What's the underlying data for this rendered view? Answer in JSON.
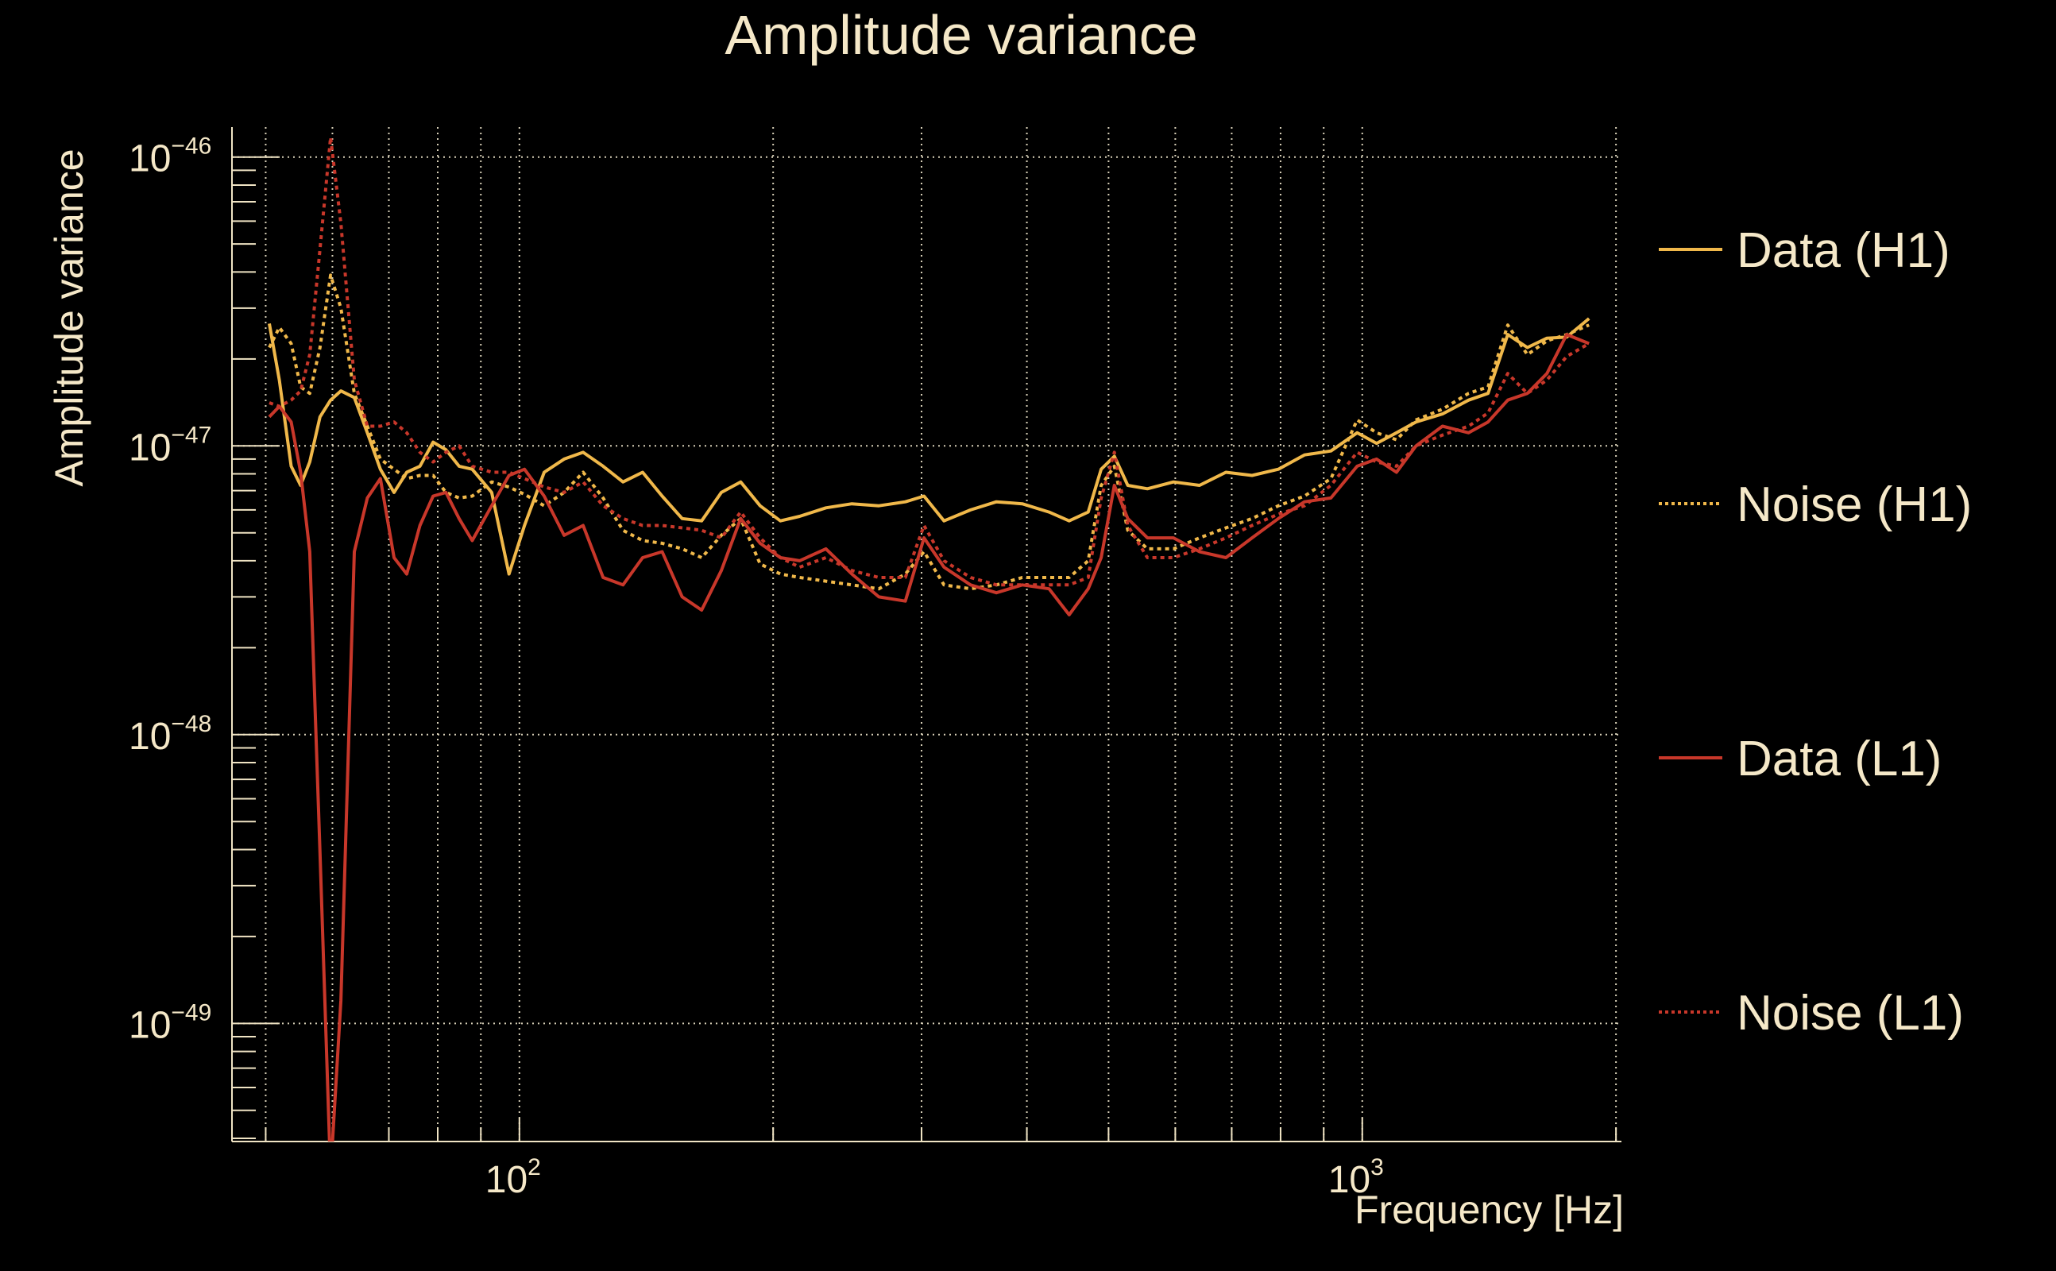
{
  "chart_data": {
    "type": "line",
    "title": "Amplitude variance",
    "xlabel": "Frequency [Hz]",
    "ylabel": "Amplitude variance",
    "xscale": "log",
    "yscale": "log",
    "xlim": [
      45.6,
      2030
    ],
    "ylim": [
      3.9e-50,
      1.27e-46
    ],
    "grid": true,
    "legend_position": "right",
    "x_ticks": [
      {
        "value": 100,
        "base": "10",
        "exp": "2"
      },
      {
        "value": 1000,
        "base": "10",
        "exp": "3"
      }
    ],
    "y_ticks": [
      {
        "value": 1e-46,
        "base": "10",
        "exp": "−46"
      },
      {
        "value": 1e-47,
        "base": "10",
        "exp": "−47"
      },
      {
        "value": 1e-48,
        "base": "10",
        "exp": "−48"
      },
      {
        "value": 1e-49,
        "base": "10",
        "exp": "−49"
      }
    ],
    "x": [
      50.5,
      51.9,
      53.6,
      55,
      56.4,
      58,
      59.7,
      61.4,
      63.7,
      66,
      68.4,
      71,
      73.5,
      76.2,
      79,
      81.8,
      84.8,
      87.9,
      92.7,
      97.2,
      101.4,
      107,
      113,
      119,
      125.7,
      132.7,
      140,
      147.7,
      156,
      164.5,
      173.6,
      183,
      193,
      204,
      215,
      231,
      248,
      267,
      287,
      302,
      319,
      343,
      368,
      395,
      425,
      449,
      473,
      490,
      508,
      527,
      556,
      597,
      641,
      689,
      740,
      795,
      854,
      918,
      986,
      1040,
      1098,
      1158,
      1245,
      1337,
      1410,
      1488,
      1570,
      1656,
      1748,
      1858
    ],
    "series": [
      {
        "name": "Data (H1)",
        "color": "#f0b84a",
        "style": "solid",
        "values": [
          2.65e-47,
          1.69e-47,
          8.5e-48,
          7.3e-48,
          8.8e-48,
          1.26e-47,
          1.44e-47,
          1.55e-47,
          1.47e-47,
          1.11e-47,
          8.3e-48,
          6.9e-48,
          8.1e-48,
          8.5e-48,
          1.03e-47,
          9.7e-48,
          8.5e-48,
          8.3e-48,
          6.9e-48,
          3.6e-48,
          5.3e-48,
          8.1e-48,
          9e-48,
          9.5e-48,
          8.5e-48,
          7.5e-48,
          8.1e-48,
          6.7e-48,
          5.6e-48,
          5.5e-48,
          6.9e-48,
          7.5e-48,
          6.2e-48,
          5.5e-48,
          5.7e-48,
          6.1e-48,
          6.3e-48,
          6.2e-48,
          6.4e-48,
          6.7e-48,
          5.5e-48,
          6e-48,
          6.4e-48,
          6.3e-48,
          5.9e-48,
          5.5e-48,
          5.9e-48,
          8.3e-48,
          9.2e-48,
          7.3e-48,
          7.1e-48,
          7.5e-48,
          7.3e-48,
          8.1e-48,
          7.9e-48,
          8.3e-48,
          9.3e-48,
          9.6e-48,
          1.11e-47,
          1.02e-47,
          1.11e-47,
          1.21e-47,
          1.29e-47,
          1.44e-47,
          1.52e-47,
          2.43e-47,
          2.19e-47,
          2.36e-47,
          2.38e-47,
          2.76e-47
        ]
      },
      {
        "name": "Noise (H1)",
        "color": "#f0b84a",
        "style": "dotted",
        "values": [
          2.19e-47,
          2.57e-47,
          2.26e-47,
          1.6e-47,
          1.52e-47,
          2.19e-47,
          3.9e-47,
          3e-47,
          1.52e-47,
          1.17e-47,
          9e-48,
          8.3e-48,
          7.7e-48,
          7.9e-48,
          7.9e-48,
          6.9e-48,
          6.6e-48,
          6.7e-48,
          7.5e-48,
          7.2e-48,
          6.8e-48,
          6.2e-48,
          6.9e-48,
          8.1e-48,
          6.6e-48,
          5.1e-48,
          4.7e-48,
          4.6e-48,
          4.4e-48,
          4.1e-48,
          4.9e-48,
          5.6e-48,
          3.9e-48,
          3.6e-48,
          3.5e-48,
          3.4e-48,
          3.3e-48,
          3.2e-48,
          3.6e-48,
          4.3e-48,
          3.3e-48,
          3.2e-48,
          3.3e-48,
          3.5e-48,
          3.5e-48,
          3.5e-48,
          4e-48,
          7.3e-48,
          8.5e-48,
          5.1e-48,
          4.4e-48,
          4.4e-48,
          4.8e-48,
          5.2e-48,
          5.6e-48,
          6.2e-48,
          6.7e-48,
          7.7e-48,
          1.23e-47,
          1.11e-47,
          1.05e-47,
          1.23e-47,
          1.34e-47,
          1.52e-47,
          1.6e-47,
          2.62e-47,
          2.07e-47,
          2.31e-47,
          2.43e-47,
          2.62e-47
        ]
      },
      {
        "name": "Data (L1)",
        "color": "#c8372a",
        "style": "solid",
        "values": [
          1.26e-47,
          1.37e-47,
          1.21e-47,
          8.1e-48,
          4.3e-48,
          3.9e-49,
          3e-50,
          1.2e-49,
          4.3e-48,
          6.6e-48,
          7.7e-48,
          4.1e-48,
          3.6e-48,
          5.3e-48,
          6.7e-48,
          6.9e-48,
          5.6e-48,
          4.7e-48,
          6.2e-48,
          7.9e-48,
          8.3e-48,
          6.7e-48,
          4.9e-48,
          5.3e-48,
          3.5e-48,
          3.3e-48,
          4.1e-48,
          4.3e-48,
          3e-48,
          2.7e-48,
          3.7e-48,
          5.6e-48,
          4.6e-48,
          4.1e-48,
          4e-48,
          4.4e-48,
          3.6e-48,
          3e-48,
          2.9e-48,
          4.8e-48,
          3.8e-48,
          3.3e-48,
          3.1e-48,
          3.3e-48,
          3.2e-48,
          2.6e-48,
          3.2e-48,
          4.1e-48,
          7.3e-48,
          5.6e-48,
          4.8e-48,
          4.8e-48,
          4.3e-48,
          4.1e-48,
          4.8e-48,
          5.6e-48,
          6.4e-48,
          6.6e-48,
          8.5e-48,
          9e-48,
          8.1e-48,
          1e-47,
          1.17e-47,
          1.11e-47,
          1.21e-47,
          1.44e-47,
          1.52e-47,
          1.78e-47,
          2.43e-47,
          2.26e-47
        ]
      },
      {
        "name": "Noise (L1)",
        "color": "#c8372a",
        "style": "dotted",
        "values": [
          1.41e-47,
          1.37e-47,
          1.44e-47,
          1.55e-47,
          2.07e-47,
          4.8e-47,
          1.17e-46,
          5.9e-47,
          1.69e-47,
          1.17e-47,
          1.17e-47,
          1.21e-47,
          1.11e-47,
          9.5e-48,
          8.8e-48,
          9.5e-48,
          1e-47,
          8.5e-48,
          8.1e-48,
          8.1e-48,
          7.7e-48,
          7.2e-48,
          6.9e-48,
          7.5e-48,
          6.2e-48,
          5.6e-48,
          5.3e-48,
          5.3e-48,
          5.2e-48,
          5.1e-48,
          4.8e-48,
          5.9e-48,
          4.8e-48,
          4.1e-48,
          3.8e-48,
          4.1e-48,
          3.7e-48,
          3.5e-48,
          3.5e-48,
          5.3e-48,
          4e-48,
          3.5e-48,
          3.3e-48,
          3.3e-48,
          3.3e-48,
          3.3e-48,
          3.5e-48,
          6.6e-48,
          9.5e-48,
          5.3e-48,
          4.1e-48,
          4.1e-48,
          4.4e-48,
          4.8e-48,
          5.3e-48,
          5.8e-48,
          6.2e-48,
          7.3e-48,
          9.5e-48,
          8.8e-48,
          8.5e-48,
          1e-47,
          1.09e-47,
          1.17e-47,
          1.3e-47,
          1.78e-47,
          1.52e-47,
          1.69e-47,
          2.04e-47,
          2.26e-47
        ]
      }
    ]
  }
}
